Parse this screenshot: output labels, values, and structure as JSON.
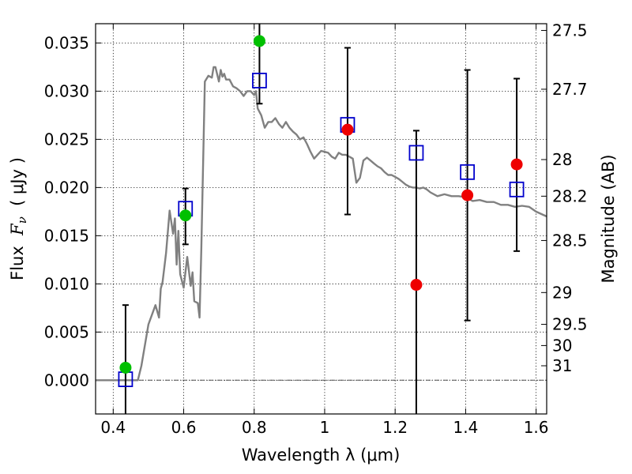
{
  "chart_data": {
    "type": "scatter",
    "xlabel": "Wavelength  λ (μm)",
    "ylabel_parts": [
      "Flux  ",
      "F",
      "ν",
      "  ( μJy )"
    ],
    "y2label": "Magnitude (AB)",
    "xlim": [
      0.35,
      1.63
    ],
    "ylim": [
      -0.0035,
      0.037
    ],
    "xticks": [
      0.4,
      0.6,
      0.8,
      1.0,
      1.2,
      1.4,
      1.6
    ],
    "xtick_labels": [
      "0.4",
      "0.6",
      "0.8",
      "1",
      "1.2",
      "1.4",
      "1.6"
    ],
    "yticks": [
      0.0,
      0.005,
      0.01,
      0.015,
      0.02,
      0.025,
      0.03,
      0.035
    ],
    "ytick_labels": [
      "0.000",
      "0.005",
      "0.010",
      "0.015",
      "0.020",
      "0.025",
      "0.030",
      "0.035"
    ],
    "mag_ticks": [
      {
        "label": "27.5",
        "flux": 0.0363
      },
      {
        "label": "27.7",
        "flux": 0.0302
      },
      {
        "label": "28",
        "flux": 0.0229
      },
      {
        "label": "28.2",
        "flux": 0.0191
      },
      {
        "label": "28.5",
        "flux": 0.0145
      },
      {
        "label": "29",
        "flux": 0.0091
      },
      {
        "label": "29.5",
        "flux": 0.0058
      },
      {
        "label": "30",
        "flux": 0.0036
      },
      {
        "label": "31",
        "flux": 0.0015
      }
    ],
    "grid": true,
    "colors": {
      "model": "#808080",
      "green": "#00c000",
      "red": "#ee0000",
      "square": "#0000cc",
      "errorbar": "#000000",
      "zero_line": "#555555"
    },
    "model_spectrum": {
      "x": [
        0.35,
        0.47,
        0.48,
        0.5,
        0.52,
        0.53,
        0.535,
        0.54,
        0.55,
        0.56,
        0.57,
        0.575,
        0.58,
        0.585,
        0.59,
        0.6,
        0.61,
        0.62,
        0.625,
        0.63,
        0.64,
        0.645,
        0.65,
        0.66,
        0.67,
        0.68,
        0.685,
        0.69,
        0.7,
        0.705,
        0.71,
        0.715,
        0.72,
        0.73,
        0.74,
        0.75,
        0.76,
        0.77,
        0.78,
        0.79,
        0.8,
        0.805,
        0.81,
        0.82,
        0.83,
        0.84,
        0.85,
        0.86,
        0.87,
        0.88,
        0.89,
        0.9,
        0.91,
        0.92,
        0.93,
        0.94,
        0.95,
        0.96,
        0.97,
        0.98,
        0.99,
        1.0,
        1.01,
        1.02,
        1.03,
        1.04,
        1.05,
        1.06,
        1.07,
        1.08,
        1.09,
        1.1,
        1.11,
        1.12,
        1.13,
        1.14,
        1.15,
        1.16,
        1.17,
        1.18,
        1.19,
        1.2,
        1.21,
        1.22,
        1.23,
        1.24,
        1.25,
        1.26,
        1.27,
        1.28,
        1.29,
        1.3,
        1.32,
        1.34,
        1.36,
        1.38,
        1.4,
        1.42,
        1.44,
        1.46,
        1.48,
        1.5,
        1.52,
        1.54,
        1.56,
        1.58,
        1.6,
        1.63
      ],
      "y": [
        0.0,
        0.0,
        0.0015,
        0.0058,
        0.0078,
        0.0065,
        0.0095,
        0.0102,
        0.0132,
        0.0176,
        0.0152,
        0.0168,
        0.012,
        0.0155,
        0.011,
        0.0096,
        0.0128,
        0.0098,
        0.0112,
        0.0082,
        0.008,
        0.0065,
        0.0135,
        0.031,
        0.0316,
        0.0314,
        0.0325,
        0.0325,
        0.031,
        0.0322,
        0.0315,
        0.0318,
        0.0312,
        0.0312,
        0.0305,
        0.0303,
        0.03,
        0.0295,
        0.03,
        0.03,
        0.0296,
        0.03,
        0.0282,
        0.0275,
        0.0262,
        0.0268,
        0.0268,
        0.0272,
        0.0266,
        0.0262,
        0.0268,
        0.0262,
        0.0258,
        0.0255,
        0.025,
        0.0252,
        0.0245,
        0.0237,
        0.023,
        0.0234,
        0.0238,
        0.0237,
        0.0236,
        0.0232,
        0.023,
        0.0236,
        0.0234,
        0.0234,
        0.0232,
        0.023,
        0.0205,
        0.021,
        0.0228,
        0.0231,
        0.0228,
        0.0225,
        0.0222,
        0.022,
        0.0216,
        0.0213,
        0.0213,
        0.0211,
        0.0209,
        0.0206,
        0.0203,
        0.0201,
        0.02,
        0.02,
        0.0199,
        0.02,
        0.0198,
        0.0195,
        0.0191,
        0.0193,
        0.0191,
        0.0191,
        0.019,
        0.0186,
        0.0187,
        0.0185,
        0.0185,
        0.0182,
        0.0182,
        0.018,
        0.0181,
        0.018,
        0.0175,
        0.017
      ]
    },
    "green_points": {
      "x": [
        0.435,
        0.605,
        0.815
      ],
      "y": [
        0.0013,
        0.0171,
        0.0352
      ]
    },
    "red_points": {
      "x": [
        1.065,
        1.26,
        1.405,
        1.545
      ],
      "y": [
        0.026,
        0.0099,
        0.0192,
        0.0224
      ]
    },
    "square_markers": {
      "x": [
        0.435,
        0.605,
        0.815,
        1.065,
        1.26,
        1.405,
        1.545
      ],
      "y": [
        0.0001,
        0.0178,
        0.0311,
        0.0265,
        0.0236,
        0.0216,
        0.0198
      ]
    },
    "error_bars": {
      "x": [
        0.435,
        0.605,
        0.815,
        1.065,
        1.26,
        1.405,
        1.545
      ],
      "low": [
        -0.0045,
        0.0141,
        0.0287,
        0.0172,
        -0.005,
        0.0062,
        0.0134
      ],
      "high": [
        0.0078,
        0.0199,
        0.0375,
        0.0345,
        0.0259,
        0.0322,
        0.0313
      ]
    }
  }
}
